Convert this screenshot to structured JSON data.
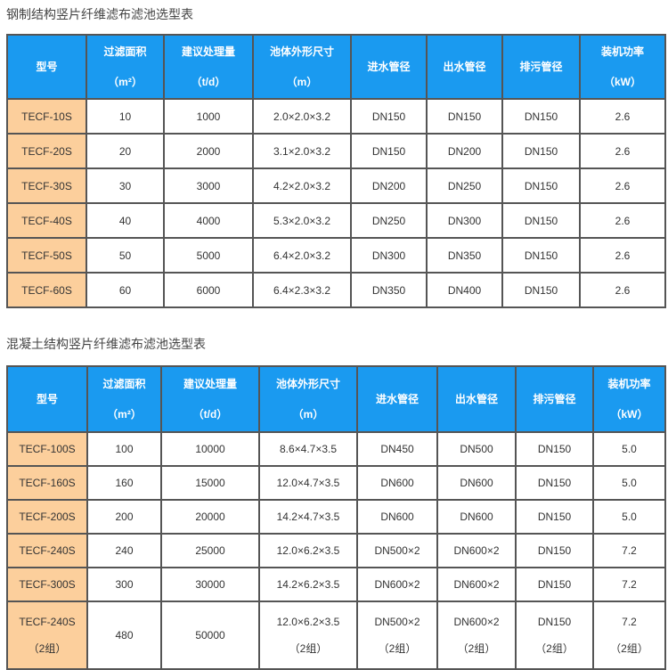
{
  "tables": [
    {
      "title": "钢制结构竖片纤维滤布滤池选型表",
      "headers": [
        [
          "型号",
          ""
        ],
        [
          "过滤面积",
          "（m²）"
        ],
        [
          "建议处理量",
          "（t/d）"
        ],
        [
          "池体外形尺寸",
          "（m）"
        ],
        [
          "进水管径",
          ""
        ],
        [
          "出水管径",
          ""
        ],
        [
          "排污管径",
          ""
        ],
        [
          "装机功率",
          "（kW）"
        ]
      ],
      "rows": [
        [
          "TECF-10S",
          "10",
          "1000",
          "2.0×2.0×3.2",
          "DN150",
          "DN150",
          "DN150",
          "2.6"
        ],
        [
          "TECF-20S",
          "20",
          "2000",
          "3.1×2.0×3.2",
          "DN150",
          "DN200",
          "DN150",
          "2.6"
        ],
        [
          "TECF-30S",
          "30",
          "3000",
          "4.2×2.0×3.2",
          "DN200",
          "DN250",
          "DN150",
          "2.6"
        ],
        [
          "TECF-40S",
          "40",
          "4000",
          "5.3×2.0×3.2",
          "DN250",
          "DN300",
          "DN150",
          "2.6"
        ],
        [
          "TECF-50S",
          "50",
          "5000",
          "6.4×2.0×3.2",
          "DN300",
          "DN350",
          "DN150",
          "2.6"
        ],
        [
          "TECF-60S",
          "60",
          "6000",
          "6.4×2.3×3.2",
          "DN350",
          "DN400",
          "DN150",
          "2.6"
        ]
      ]
    },
    {
      "title": "混凝土结构竖片纤维滤布滤池选型表",
      "headers": [
        [
          "型号",
          ""
        ],
        [
          "过滤面积",
          "（m²）"
        ],
        [
          "建议处理量",
          "（t/d）"
        ],
        [
          "池体外形尺寸",
          "（m）"
        ],
        [
          "进水管径",
          ""
        ],
        [
          "出水管径",
          ""
        ],
        [
          "排污管径",
          ""
        ],
        [
          "装机功率",
          "（kW）"
        ]
      ],
      "rows": [
        [
          "TECF-100S",
          "100",
          "10000",
          "8.6×4.7×3.5",
          "DN450",
          "DN500",
          "DN150",
          "5.0"
        ],
        [
          "TECF-160S",
          "160",
          "15000",
          "12.0×4.7×3.5",
          "DN600",
          "DN600",
          "DN150",
          "5.0"
        ],
        [
          "TECF-200S",
          "200",
          "20000",
          "14.2×4.7×3.5",
          "DN600",
          "DN600",
          "DN150",
          "5.0"
        ],
        [
          "TECF-240S",
          "240",
          "25000",
          "12.0×6.2×3.5",
          "DN500×2",
          "DN600×2",
          "DN150",
          "7.2"
        ],
        [
          "TECF-300S",
          "300",
          "30000",
          "14.2×6.2×3.5",
          "DN600×2",
          "DN600×2",
          "DN150",
          "7.2"
        ],
        [
          "TECF-240S\n（2组）",
          "480",
          "50000",
          "12.0×6.2×3.5\n（2组）",
          "DN500×2\n（2组）",
          "DN600×2\n（2组）",
          "DN150\n（2组）",
          "7.2\n（2组）"
        ]
      ]
    }
  ],
  "colors": {
    "header": "#1a9af0",
    "model_cell": "#fccf9c",
    "border": "#555555"
  }
}
